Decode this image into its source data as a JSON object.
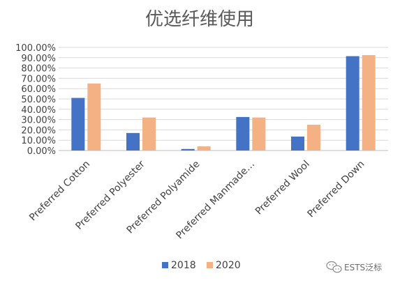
{
  "chart_data": {
    "type": "bar",
    "title": "优选纤维使用",
    "categories": [
      "Preferred Cotton",
      "Preferred Polyester",
      "Preferred Polyamide",
      "Preferred Manmade…",
      "Preferred Wool",
      "Preferred Down"
    ],
    "series": [
      {
        "name": "2018",
        "values": [
          0.51,
          0.17,
          0.015,
          0.325,
          0.135,
          0.915
        ],
        "color": "#4472C4"
      },
      {
        "name": "2020",
        "values": [
          0.65,
          0.32,
          0.04,
          0.32,
          0.25,
          0.925
        ],
        "color": "#F4B183"
      }
    ],
    "yticks": [
      "0.00%",
      "10.00%",
      "20.00%",
      "30.00%",
      "40.00%",
      "50.00%",
      "60.00%",
      "70.00%",
      "80.00%",
      "90.00%",
      "100.00%"
    ],
    "ylim": [
      0,
      1
    ],
    "grid": true,
    "legend_position": "bottom"
  },
  "watermark": {
    "text": "ESTS泛标",
    "icon": "wechat-icon"
  },
  "colors": {
    "grid": "#d9d9d9",
    "text": "#404040"
  }
}
